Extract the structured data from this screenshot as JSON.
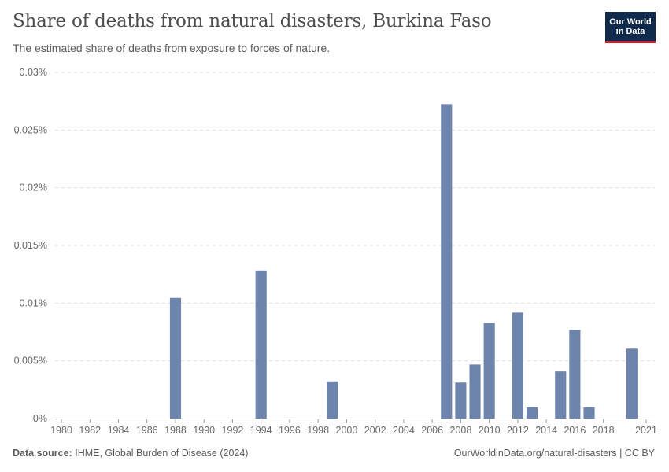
{
  "header": {
    "title": "Share of deaths from natural disasters, Burkina Faso",
    "subtitle": "The estimated share of deaths from exposure to forces of nature."
  },
  "logo": {
    "line1": "Our World",
    "line2": "in Data"
  },
  "footer": {
    "source_label": "Data source:",
    "source_text": "IHME, Global Burden of Disease (2024)",
    "link": "OurWorldinData.org/natural-disasters | CC BY"
  },
  "chart_data": {
    "type": "bar",
    "title": "Share of deaths from natural disasters, Burkina Faso",
    "xlabel": "",
    "ylabel": "",
    "ylim": [
      0,
      0.03
    ],
    "yticks": [
      0,
      0.005,
      0.01,
      0.015,
      0.02,
      0.025,
      0.03
    ],
    "ytick_labels": [
      "0%",
      "0.005%",
      "0.01%",
      "0.015%",
      "0.02%",
      "0.025%",
      "0.03%"
    ],
    "xlim": [
      1980,
      2021
    ],
    "xticks": [
      1980,
      1982,
      1984,
      1986,
      1988,
      1990,
      1992,
      1994,
      1996,
      1998,
      2000,
      2002,
      2004,
      2006,
      2008,
      2010,
      2012,
      2014,
      2016,
      2018,
      2021
    ],
    "grid": true,
    "color": "#6d84ad",
    "categories": [
      1980,
      1981,
      1982,
      1983,
      1984,
      1985,
      1986,
      1987,
      1988,
      1989,
      1990,
      1991,
      1992,
      1993,
      1994,
      1995,
      1996,
      1997,
      1998,
      1999,
      2000,
      2001,
      2002,
      2003,
      2004,
      2005,
      2006,
      2007,
      2008,
      2009,
      2010,
      2011,
      2012,
      2013,
      2014,
      2015,
      2016,
      2017,
      2018,
      2019,
      2020,
      2021
    ],
    "values": [
      0,
      0,
      0,
      0,
      0,
      0,
      0,
      0,
      0.01045,
      0,
      0,
      0,
      0,
      0,
      0.01283,
      0,
      0,
      0,
      0,
      0.00322,
      0,
      0,
      0,
      0,
      0,
      0,
      0,
      0.02725,
      0.00312,
      0.00468,
      0.00828,
      0,
      0.00918,
      0.00097,
      0,
      0.00408,
      0.00768,
      0.00097,
      0,
      0,
      0.00605,
      0
    ],
    "unit": "%"
  }
}
